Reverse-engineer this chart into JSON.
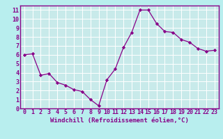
{
  "x": [
    0,
    1,
    2,
    3,
    4,
    5,
    6,
    7,
    8,
    9,
    10,
    11,
    12,
    13,
    14,
    15,
    16,
    17,
    18,
    19,
    20,
    21,
    22,
    23
  ],
  "y": [
    6.0,
    6.1,
    3.7,
    3.9,
    2.9,
    2.6,
    2.1,
    1.9,
    1.0,
    0.3,
    3.2,
    4.4,
    6.8,
    8.5,
    11.0,
    11.0,
    9.5,
    8.6,
    8.5,
    7.7,
    7.4,
    6.7,
    6.4,
    6.5
  ],
  "line_color": "#880088",
  "marker": "D",
  "marker_size": 2.2,
  "background_color": "#b8eeee",
  "grid_color": "#d0e8e8",
  "xlabel": "Windchill (Refroidissement éolien,°C)",
  "xlim": [
    -0.5,
    23.5
  ],
  "ylim": [
    0,
    11.5
  ],
  "xticks": [
    0,
    1,
    2,
    3,
    4,
    5,
    6,
    7,
    8,
    9,
    10,
    11,
    12,
    13,
    14,
    15,
    16,
    17,
    18,
    19,
    20,
    21,
    22,
    23
  ],
  "yticks": [
    0,
    1,
    2,
    3,
    4,
    5,
    6,
    7,
    8,
    9,
    10,
    11
  ],
  "xlabel_fontsize": 6.5,
  "tick_fontsize": 6.0,
  "spine_color": "#880088",
  "axis_bg": "#c8eaea"
}
